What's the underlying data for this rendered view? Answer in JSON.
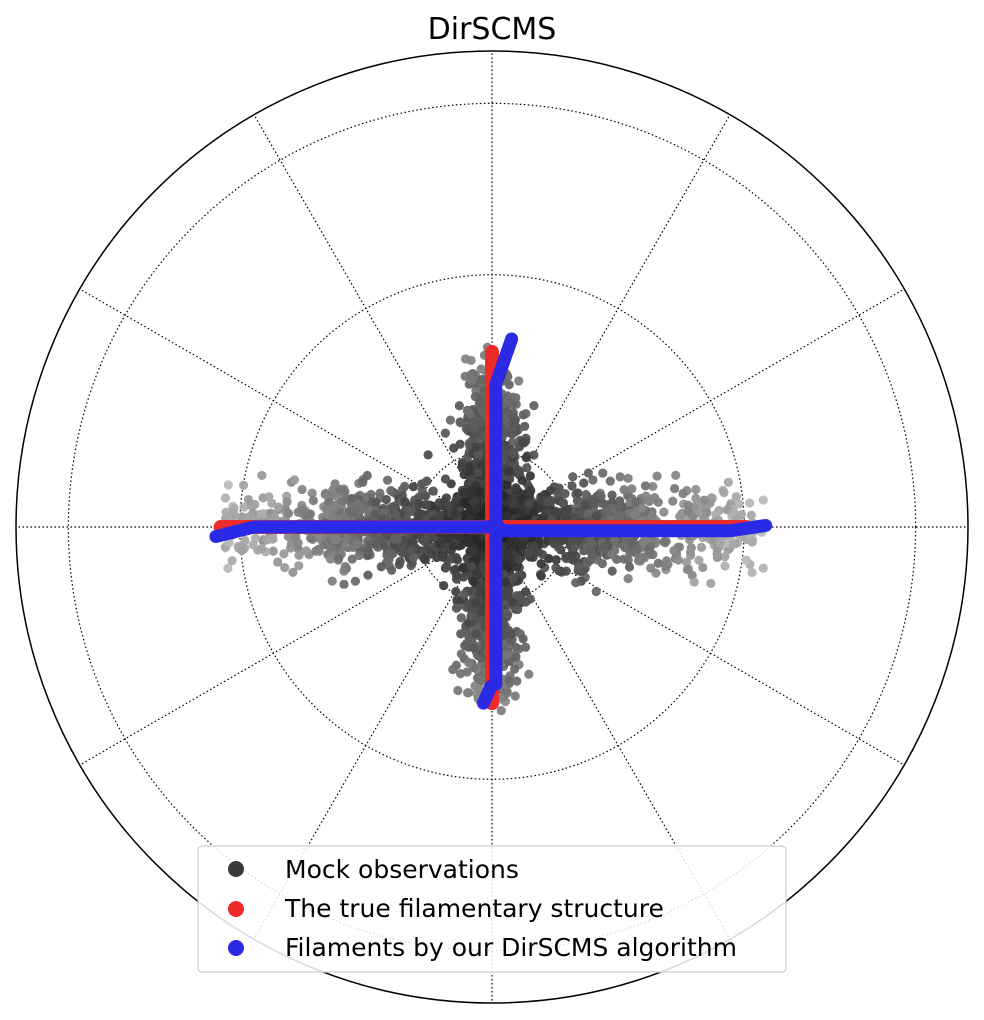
{
  "chart_data": {
    "type": "scatter",
    "projection": "polar (orthographic view of a sphere)",
    "title": "DirSCMS",
    "grid": true,
    "legend_position": "bottom-center",
    "series": [
      {
        "name": "Mock observations",
        "color": "#3a3a3a",
        "kind": "scatter",
        "point_count_approx": 3000
      },
      {
        "name": "The true filamentary structure",
        "color": "#ee2a2a",
        "kind": "scatter"
      },
      {
        "name": "Filaments by our DirSCMS algorithm",
        "color": "#2a2ae6",
        "kind": "scatter"
      }
    ],
    "filament_arms": {
      "horizontal": {
        "extent": [
          -0.58,
          0.55
        ]
      },
      "vertical": {
        "extent": [
          -0.39,
          0.39
        ]
      }
    },
    "noise_spread": {
      "horizontal_arm_width": 0.12,
      "vertical_arm_width": 0.09
    }
  }
}
